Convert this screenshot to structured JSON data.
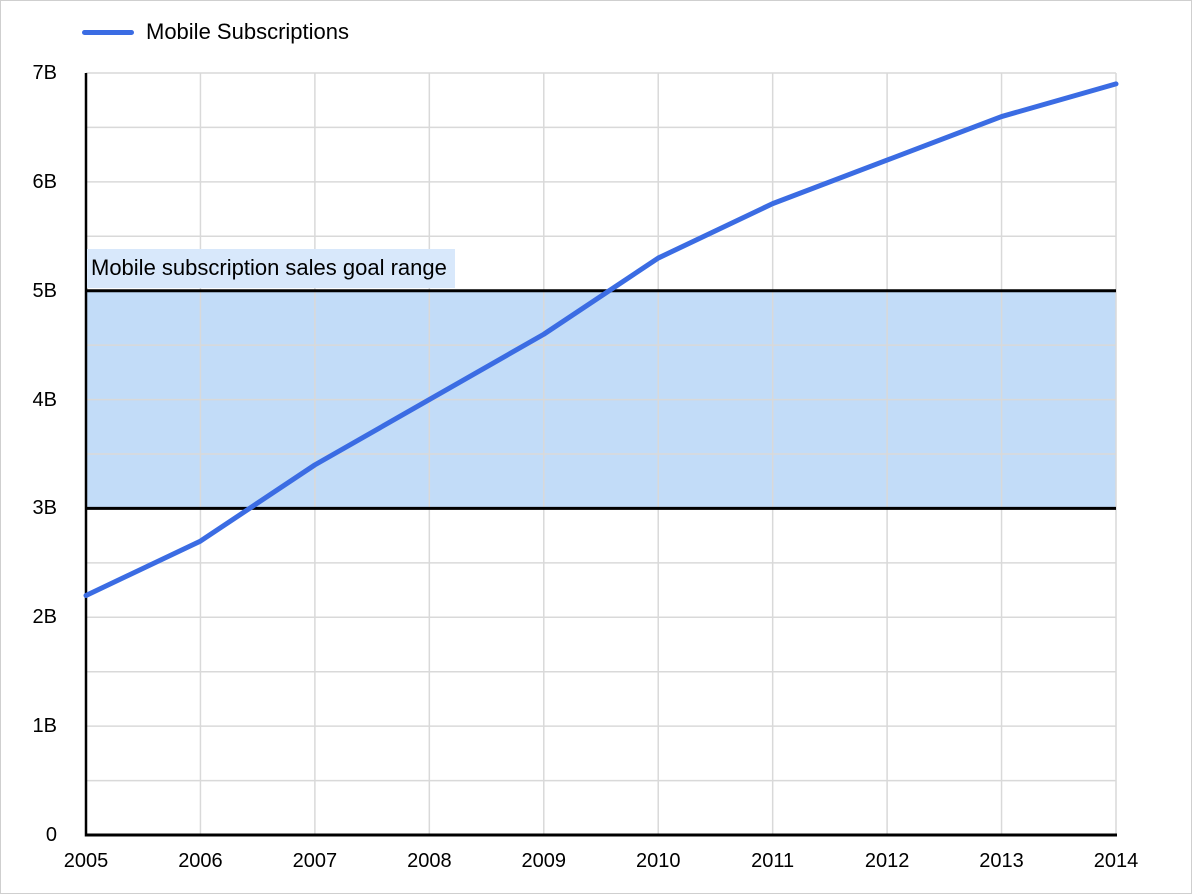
{
  "legend": {
    "series_label": "Mobile Subscriptions"
  },
  "colors": {
    "line": "#3b6ce3",
    "grid": "#d9d9d9",
    "axis": "#000000",
    "band_fill": "#c2dcf8",
    "band_border": "#000000",
    "band_label_bg": "#d8e8fb",
    "text": "#000000",
    "card_border": "#cfcfcf",
    "background": "#ffffff"
  },
  "chart_data": {
    "type": "line",
    "title": "",
    "xlabel": "",
    "ylabel": "",
    "x": [
      2005,
      2006,
      2007,
      2008,
      2009,
      2010,
      2011,
      2012,
      2013,
      2014
    ],
    "x_tick_labels": [
      "2005",
      "2006",
      "2007",
      "2008",
      "2009",
      "2010",
      "2011",
      "2012",
      "2013",
      "2014"
    ],
    "series": [
      {
        "name": "Mobile Subscriptions",
        "color": "#3b6ce3",
        "values": [
          2.2,
          2.7,
          3.4,
          4.0,
          4.6,
          5.3,
          5.8,
          6.2,
          6.6,
          6.9
        ]
      }
    ],
    "ylim": [
      0,
      7
    ],
    "y_major_ticks": [
      {
        "value": 0,
        "label": "0"
      },
      {
        "value": 1,
        "label": "1B"
      },
      {
        "value": 2,
        "label": "2B"
      },
      {
        "value": 3,
        "label": "3B"
      },
      {
        "value": 4,
        "label": "4B"
      },
      {
        "value": 5,
        "label": "5B"
      },
      {
        "value": 6,
        "label": "6B"
      },
      {
        "value": 7,
        "label": "7B"
      }
    ],
    "y_minor_step": 0.5,
    "grid": true,
    "legend_position": "top-left",
    "goal_band": {
      "label": "Mobile subscription sales goal range",
      "from": 3,
      "to": 5
    }
  }
}
